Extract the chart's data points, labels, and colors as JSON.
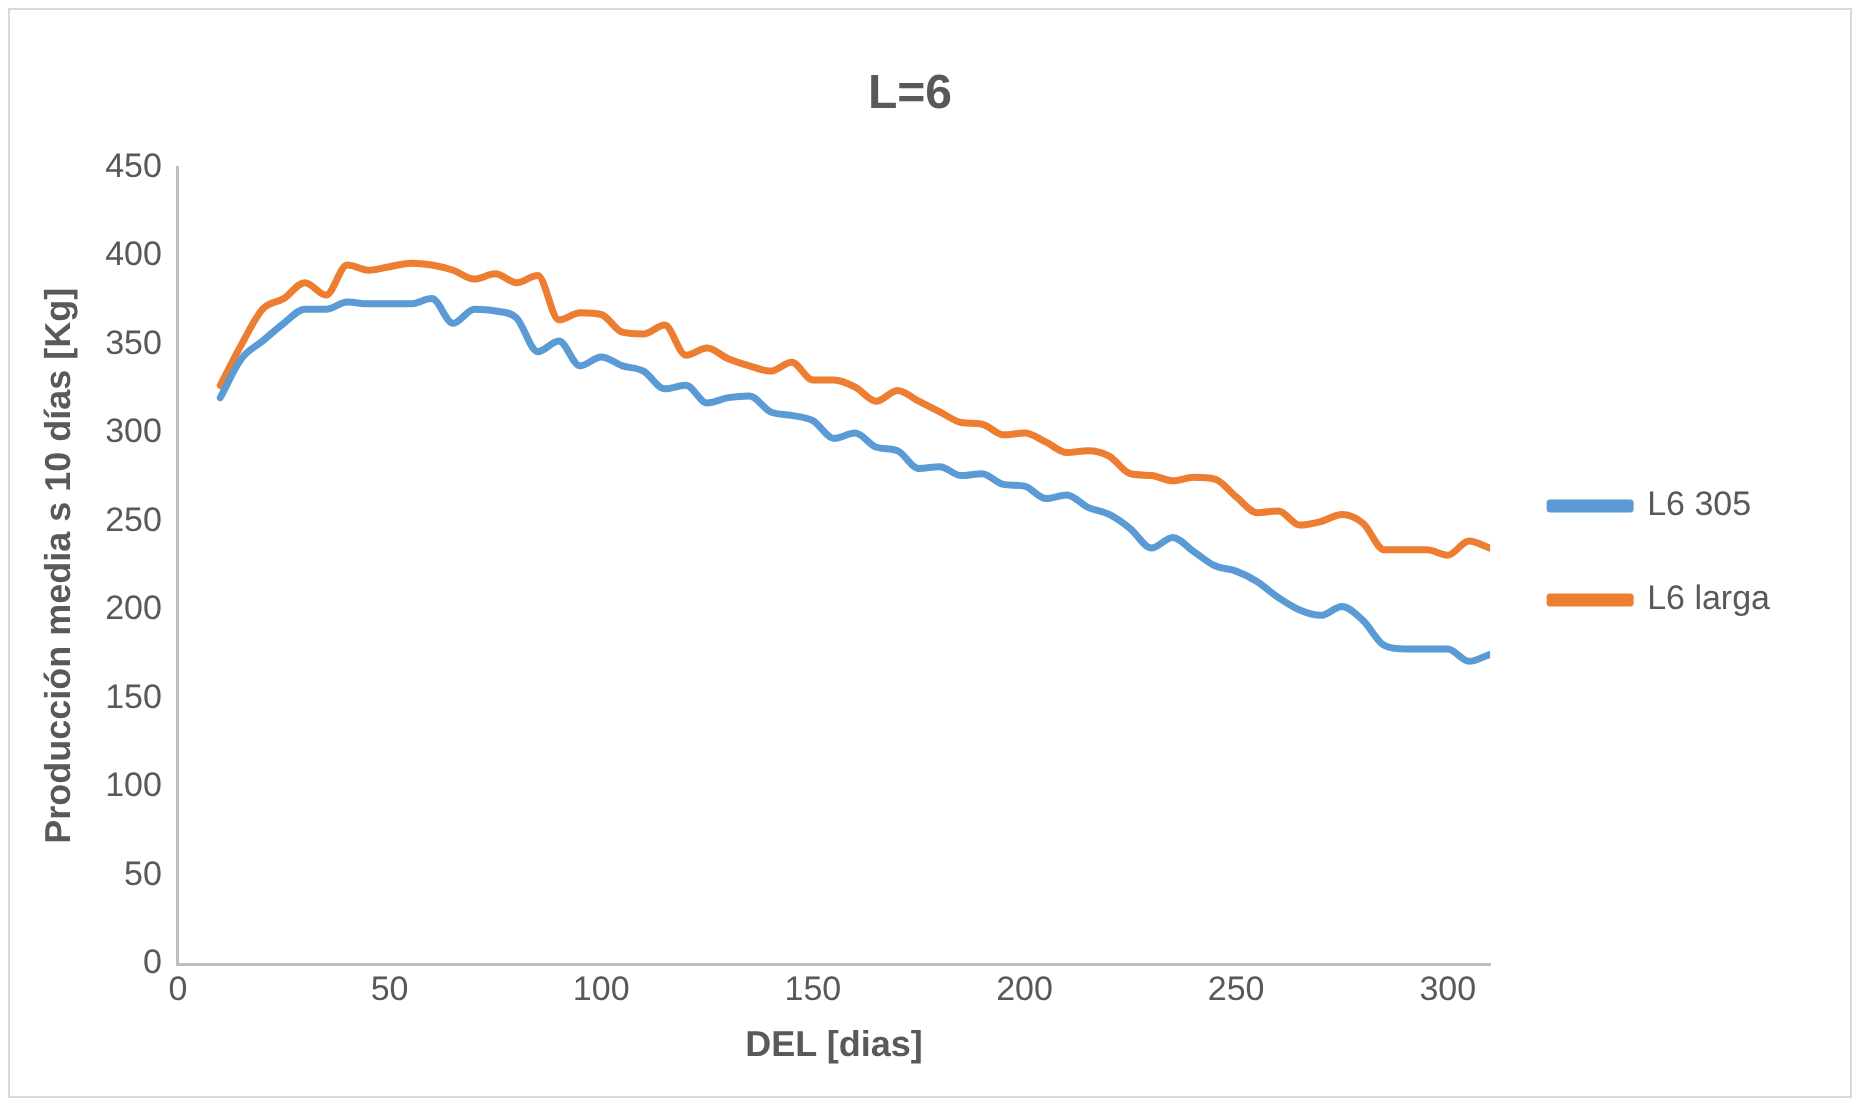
{
  "chart_data": {
    "type": "line",
    "title": "L=6",
    "xlabel": "DEL [dias]",
    "ylabel": "Producción media s 10 días [Kg]",
    "x": [
      10,
      15,
      20,
      25,
      30,
      35,
      40,
      45,
      50,
      55,
      60,
      65,
      70,
      75,
      80,
      85,
      90,
      95,
      100,
      105,
      110,
      115,
      120,
      125,
      130,
      135,
      140,
      145,
      150,
      155,
      160,
      165,
      170,
      175,
      180,
      185,
      190,
      195,
      200,
      205,
      210,
      215,
      220,
      225,
      230,
      235,
      240,
      245,
      250,
      255,
      260,
      265,
      270,
      275,
      280,
      285,
      290,
      295,
      300,
      305,
      310
    ],
    "series": [
      {
        "name": "L6 305",
        "color": "#5b9bd5",
        "values": [
          320,
          342,
          352,
          362,
          370,
          370,
          374,
          373,
          373,
          373,
          376,
          362,
          370,
          369,
          365,
          346,
          352,
          338,
          343,
          338,
          335,
          325,
          327,
          317,
          320,
          321,
          312,
          310,
          307,
          297,
          300,
          292,
          290,
          280,
          281,
          276,
          277,
          271,
          270,
          263,
          265,
          258,
          254,
          246,
          235,
          241,
          233,
          225,
          222,
          216,
          207,
          200,
          197,
          202,
          194,
          180,
          178,
          178,
          178,
          171,
          175
        ]
      },
      {
        "name": "L6 larga",
        "color": "#ed7d31",
        "values": [
          327,
          350,
          370,
          376,
          385,
          378,
          395,
          392,
          394,
          396,
          395,
          392,
          387,
          390,
          385,
          389,
          364,
          368,
          367,
          357,
          356,
          361,
          344,
          348,
          342,
          338,
          335,
          340,
          330,
          330,
          326,
          318,
          324,
          318,
          312,
          306,
          305,
          299,
          300,
          295,
          289,
          290,
          287,
          277,
          276,
          273,
          275,
          274,
          264,
          255,
          256,
          248,
          250,
          254,
          249,
          234,
          234,
          234,
          231,
          239,
          235
        ]
      }
    ],
    "xlim": [
      0,
      310
    ],
    "xticks": [
      0,
      50,
      100,
      150,
      200,
      250,
      300
    ],
    "ylim": [
      0,
      450
    ],
    "yticks": [
      0,
      50,
      100,
      150,
      200,
      250,
      300,
      350,
      400,
      450
    ],
    "grid": false,
    "legend": "right",
    "marker": "none",
    "line_style": "solid"
  }
}
